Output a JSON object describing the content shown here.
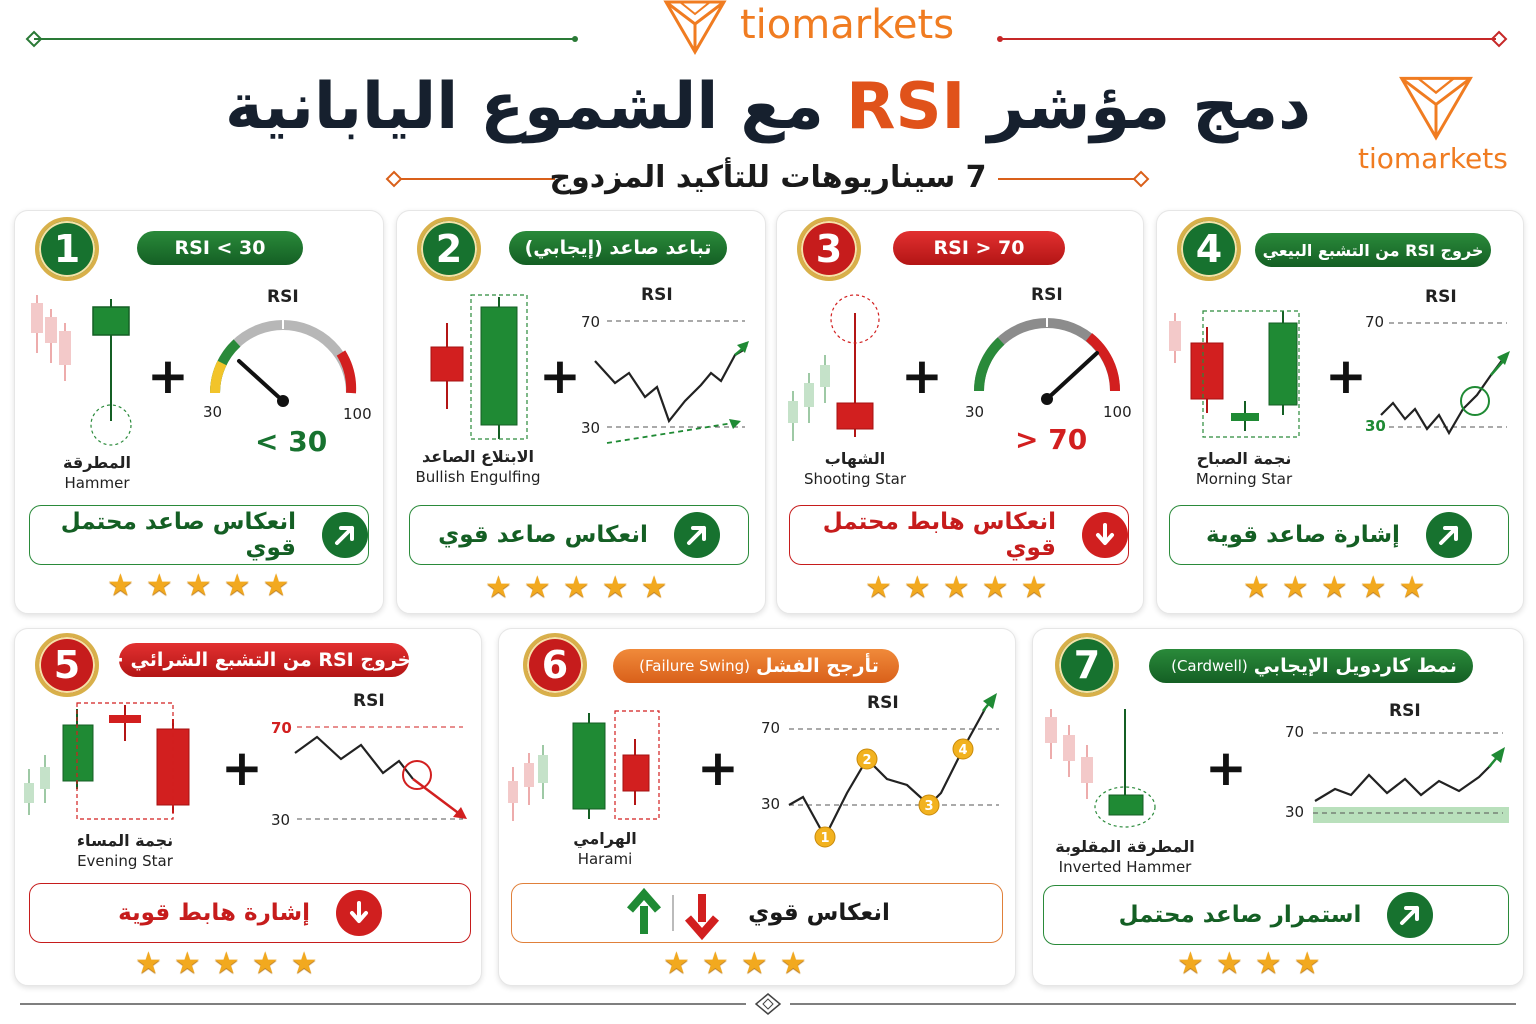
{
  "brand": {
    "name": "tiomarkets",
    "secondary_name": "tiomarkets"
  },
  "title": {
    "part1": "دمج مؤشر",
    "rsi": "RSI",
    "part2": "مع الشموع اليابانية"
  },
  "subtitle": "7 سيناريوهات للتأكيد المزدوج",
  "colors": {
    "green": "#17722f",
    "red": "#c61c1c",
    "orange": "#e0521a",
    "gold": "#d8b04a",
    "star": "#f2a91f"
  },
  "cards": [
    {
      "number": "1",
      "pill": "RSI < 30",
      "pattern_ar": "المطرقة",
      "pattern_en": "Hammer",
      "rsi_label": "RSI",
      "gauge_min": "30",
      "gauge_max": "100",
      "value_text": "< 30",
      "signal": "انعكاس صاعد محتمل قوي",
      "signal_icon": "arrow-up-right-icon",
      "stars": 5
    },
    {
      "number": "2",
      "pill": "تباعد صاعد (إيجابي)",
      "pattern_ar": "الابتلاع الصاعد",
      "pattern_en": "Bullish Engulfing",
      "rsi_label": "RSI",
      "level_high": "70",
      "level_low": "30",
      "signal": "انعكاس صاعد قوي",
      "signal_icon": "arrow-up-right-icon",
      "stars": 5
    },
    {
      "number": "3",
      "pill": "RSI > 70",
      "pattern_ar": "الشهاب",
      "pattern_en": "Shooting Star",
      "rsi_label": "RSI",
      "gauge_min": "30",
      "gauge_max": "100",
      "value_text": "> 70",
      "signal": "انعكاس هابط محتمل قوي",
      "signal_icon": "arrow-down-icon",
      "stars": 5
    },
    {
      "number": "4",
      "pill": "خروج RSI من التشبع البيعي",
      "pattern_ar": "نجمة الصباح",
      "pattern_en": "Morning Star",
      "rsi_label": "RSI",
      "level_high": "70",
      "level_low": "30",
      "signal": "إشارة صاعد قوية",
      "signal_icon": "arrow-up-right-icon",
      "stars": 5
    },
    {
      "number": "5",
      "pill": "خروج RSI من التشبع الشرائي ·",
      "pattern_ar": "نجمة المساء",
      "pattern_en": "Evening Star",
      "rsi_label": "RSI",
      "level_high": "70",
      "level_low": "30",
      "signal": "إشارة هابط قوية",
      "signal_icon": "arrow-down-icon",
      "stars": 5
    },
    {
      "number": "6",
      "pill": "تأرجح الفشل",
      "pill_en": "(Failure Swing)",
      "pattern_ar": "الهرامي",
      "pattern_en": "Harami",
      "rsi_label": "RSI",
      "level_high": "70",
      "level_low": "30",
      "points": [
        "1",
        "2",
        "3",
        "4"
      ],
      "signal": "انعكاس قوي",
      "signal_icon": "up-down-arrows-icon",
      "stars": 4
    },
    {
      "number": "7",
      "pill": "نمط كاردويل الإيجابي",
      "pill_en": "(Cardwell)",
      "pattern_ar": "المطرقة المقلوبة",
      "pattern_en": "Inverted Hammer",
      "rsi_label": "RSI",
      "level_high": "70",
      "level_low": "30",
      "signal": "استمرار صاعد محتمل",
      "signal_icon": "arrow-up-right-icon",
      "stars": 4
    }
  ]
}
